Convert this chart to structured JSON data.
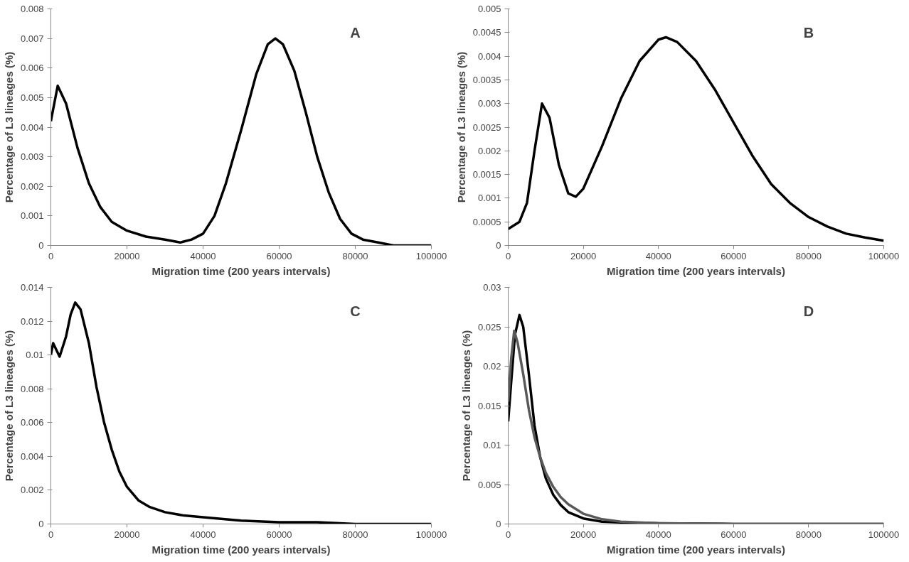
{
  "chart_data": [
    {
      "type": "line",
      "annotations": [
        "A"
      ],
      "xlabel": "Migration time (200 years intervals)",
      "ylabel": "Percentage of L3 lineages (%)",
      "xlim": [
        0,
        100000
      ],
      "xticks": [
        0,
        20000,
        40000,
        60000,
        80000,
        100000
      ],
      "ylim": [
        0,
        0.008
      ],
      "yticks": [
        0,
        0.001,
        0.002,
        0.003,
        0.004,
        0.005,
        0.006,
        0.007,
        0.008
      ],
      "grid": false,
      "marker": "none",
      "line_style": "solid",
      "series": [
        {
          "color": "#000000",
          "x": [
            0,
            1800,
            4000,
            7000,
            10000,
            13000,
            16000,
            20000,
            25000,
            30000,
            34000,
            37000,
            40000,
            43000,
            46000,
            50000,
            54000,
            57000,
            59000,
            61000,
            64000,
            67000,
            70000,
            73000,
            76000,
            79000,
            82000,
            86000,
            90000,
            100000
          ],
          "values": [
            0.0042,
            0.0054,
            0.0048,
            0.0033,
            0.0021,
            0.0013,
            0.0008,
            0.0005,
            0.0003,
            0.0002,
            0.0001,
            0.0002,
            0.0004,
            0.001,
            0.0021,
            0.0039,
            0.0058,
            0.0068,
            0.007,
            0.0068,
            0.0059,
            0.0045,
            0.003,
            0.0018,
            0.0009,
            0.0004,
            0.0002,
            0.0001,
            0,
            0
          ]
        }
      ]
    },
    {
      "type": "line",
      "annotations": [
        "B"
      ],
      "xlabel": "Migration time (200 years intervals)",
      "ylabel": "Percentage of L3 lineages (%)",
      "xlim": [
        0,
        100000
      ],
      "xticks": [
        0,
        20000,
        40000,
        60000,
        80000,
        100000
      ],
      "ylim": [
        0,
        0.005
      ],
      "yticks": [
        0,
        0.0005,
        0.001,
        0.0015,
        0.002,
        0.0025,
        0.003,
        0.0035,
        0.004,
        0.0045,
        0.005
      ],
      "grid": false,
      "marker": "none",
      "line_style": "solid",
      "series": [
        {
          "color": "#000000",
          "x": [
            0,
            3000,
            5000,
            7000,
            9000,
            11000,
            13500,
            16000,
            18000,
            20000,
            25000,
            30000,
            35000,
            40000,
            42000,
            45000,
            50000,
            55000,
            60000,
            65000,
            70000,
            75000,
            80000,
            85000,
            90000,
            95000,
            100000
          ],
          "values": [
            0.00035,
            0.0005,
            0.0009,
            0.002,
            0.003,
            0.0027,
            0.0017,
            0.0011,
            0.00103,
            0.0012,
            0.0021,
            0.0031,
            0.0039,
            0.00435,
            0.0044,
            0.0043,
            0.0039,
            0.0033,
            0.0026,
            0.0019,
            0.0013,
            0.0009,
            0.0006,
            0.0004,
            0.00025,
            0.00017,
            0.0001
          ]
        }
      ]
    },
    {
      "type": "line",
      "annotations": [
        "C"
      ],
      "xlabel": "Migration time (200 years intervals)",
      "ylabel": "Percentage of L3 lineages (%)",
      "xlim": [
        0,
        100000
      ],
      "xticks": [
        0,
        20000,
        40000,
        60000,
        80000,
        100000
      ],
      "ylim": [
        0,
        0.014
      ],
      "yticks": [
        0,
        0.002,
        0.004,
        0.006,
        0.008,
        0.01,
        0.012,
        0.014
      ],
      "grid": false,
      "marker": "none",
      "line_style": "solid",
      "series": [
        {
          "color": "#000000",
          "x": [
            0,
            600,
            2300,
            4000,
            5200,
            6400,
            7800,
            10000,
            12000,
            14000,
            16000,
            18000,
            20000,
            23000,
            26000,
            30000,
            35000,
            40000,
            50000,
            60000,
            70000,
            80000,
            100000
          ],
          "values": [
            0.01,
            0.0107,
            0.0099,
            0.0111,
            0.0124,
            0.0131,
            0.0127,
            0.0107,
            0.0081,
            0.006,
            0.0044,
            0.0031,
            0.0022,
            0.0014,
            0.001,
            0.0007,
            0.0005,
            0.0004,
            0.0002,
            0.0001,
            0.0001,
            0,
            0
          ]
        }
      ]
    },
    {
      "type": "line",
      "annotations": [
        "D"
      ],
      "xlabel": "Migration time (200 years intervals)",
      "ylabel": "Percentage of L3 lineages (%)",
      "xlim": [
        0,
        100000
      ],
      "xticks": [
        0,
        20000,
        40000,
        60000,
        80000,
        100000
      ],
      "ylim": [
        0,
        0.03
      ],
      "yticks": [
        0,
        0.005,
        0.01,
        0.015,
        0.02,
        0.025,
        0.03
      ],
      "grid": false,
      "marker": "none",
      "line_style": "solid",
      "series": [
        {
          "color": "#000000",
          "x": [
            0,
            800,
            1800,
            3000,
            4000,
            5500,
            7000,
            8500,
            10000,
            12000,
            14000,
            16000,
            20000,
            25000,
            30000,
            40000,
            60000,
            100000
          ],
          "values": [
            0.013,
            0.018,
            0.024,
            0.0265,
            0.025,
            0.019,
            0.0125,
            0.0085,
            0.0058,
            0.0037,
            0.0024,
            0.0015,
            0.0007,
            0.0003,
            0.0002,
            0.0001,
            0,
            0
          ]
        },
        {
          "color": "#595959",
          "x": [
            0,
            800,
            1600,
            2500,
            4000,
            5500,
            7000,
            8500,
            10000,
            12000,
            14000,
            16000,
            20000,
            25000,
            30000,
            40000,
            60000,
            100000
          ],
          "values": [
            0.0155,
            0.021,
            0.0245,
            0.023,
            0.019,
            0.0145,
            0.011,
            0.0085,
            0.0065,
            0.0047,
            0.0034,
            0.0025,
            0.0013,
            0.0006,
            0.0003,
            0.0001,
            0,
            0
          ]
        }
      ]
    }
  ]
}
